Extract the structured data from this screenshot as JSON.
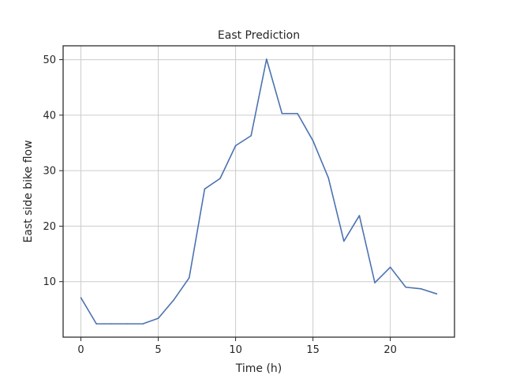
{
  "chart_data": {
    "type": "line",
    "title": "East Prediction",
    "xlabel": "Time (h)",
    "ylabel": "East side bike flow",
    "xlim": [
      -1.15,
      24.15
    ],
    "ylim": [
      0.0,
      52.5
    ],
    "xticks": [
      0,
      5,
      10,
      15,
      20
    ],
    "yticks": [
      10,
      20,
      30,
      40,
      50
    ],
    "grid": true,
    "series": [
      {
        "color": "#4c72b0",
        "x": [
          0,
          1,
          2,
          3,
          4,
          5,
          6,
          7,
          8,
          9,
          10,
          11,
          12,
          13,
          14,
          15,
          16,
          17,
          18,
          19,
          20,
          21,
          22,
          23
        ],
        "y": [
          7.1,
          2.4,
          2.4,
          2.4,
          2.4,
          3.4,
          6.7,
          10.7,
          26.7,
          28.6,
          34.5,
          36.3,
          50.1,
          40.3,
          40.3,
          35.4,
          28.7,
          17.3,
          21.9,
          9.8,
          12.6,
          9.0,
          8.7,
          7.8
        ]
      }
    ]
  }
}
